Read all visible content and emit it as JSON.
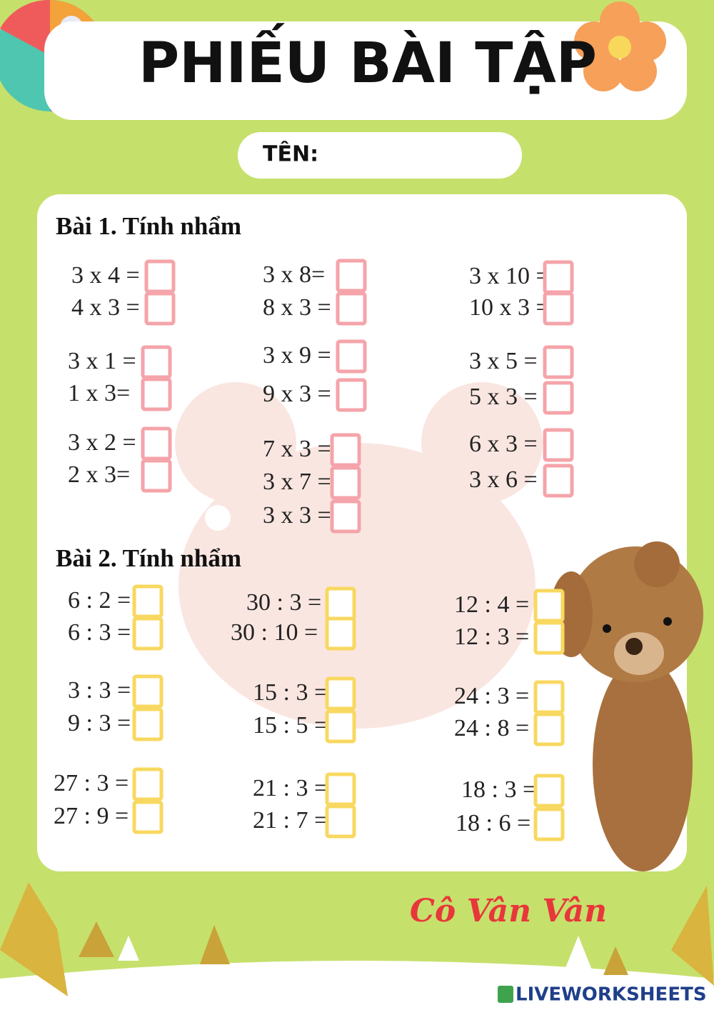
{
  "header": {
    "title": "PHIẾU BÀI TẬP",
    "name_label": "TÊN:"
  },
  "sections": [
    {
      "title": "Bài 1. Tính nhẩm",
      "problems": [
        "3 x 4 =",
        "4 x 3 =",
        "3 x 1 =",
        "1 x 3=",
        "3 x 2 =",
        "2 x 3=",
        "3 x 8=",
        "8 x 3 =",
        "3 x 9 =",
        "9 x 3 =",
        "7 x 3 =",
        "3 x 7 =",
        "3 x 3 =",
        "3 x 10 =",
        "10 x 3 =",
        "3 x 5 =",
        "5 x 3 =",
        "6 x 3 =",
        "3 x 6 ="
      ]
    },
    {
      "title": "Bài 2. Tính nhẩm",
      "problems": [
        "6 : 2 =",
        "6 : 3 =",
        "3 : 3 =",
        "9 : 3 =",
        "27 : 3 =",
        "27 : 9 =",
        "30 : 3 =",
        "30 : 10 =",
        "15 : 3 =",
        "15 : 5 =",
        "21 : 3 =",
        "21 : 7 =",
        "12 : 4 =",
        "12 : 3 =",
        "24 : 3 =",
        "24 : 8 =",
        "18 : 3 =",
        "18 : 6 ="
      ]
    }
  ],
  "footer": {
    "author": "Cô Vân Vân",
    "brand": "LIVEWORKSHEETS"
  }
}
